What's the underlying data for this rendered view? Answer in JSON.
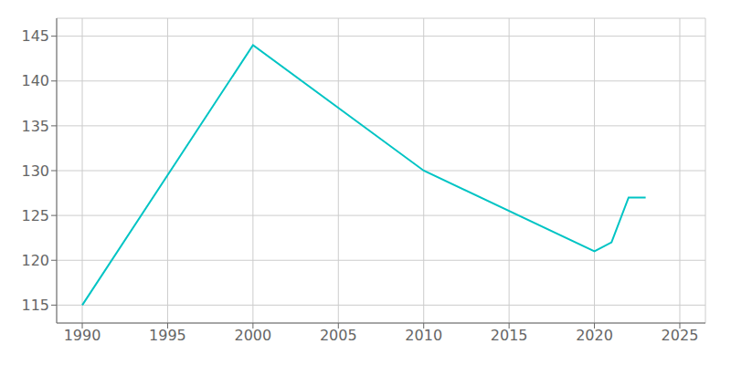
{
  "chart_data": {
    "type": "line",
    "x": [
      1990,
      2000,
      2010,
      2020,
      2021,
      2022,
      2023
    ],
    "values": [
      115,
      144,
      130,
      121,
      122,
      127,
      127
    ],
    "color": "#00C4C4",
    "xlim": [
      1988.5,
      2026.5
    ],
    "ylim": [
      113.0,
      147.0
    ],
    "xticks": [
      1990,
      1995,
      2000,
      2005,
      2010,
      2015,
      2020,
      2025
    ],
    "yticks": [
      115,
      120,
      125,
      130,
      135,
      140,
      145
    ],
    "grid": true
  }
}
